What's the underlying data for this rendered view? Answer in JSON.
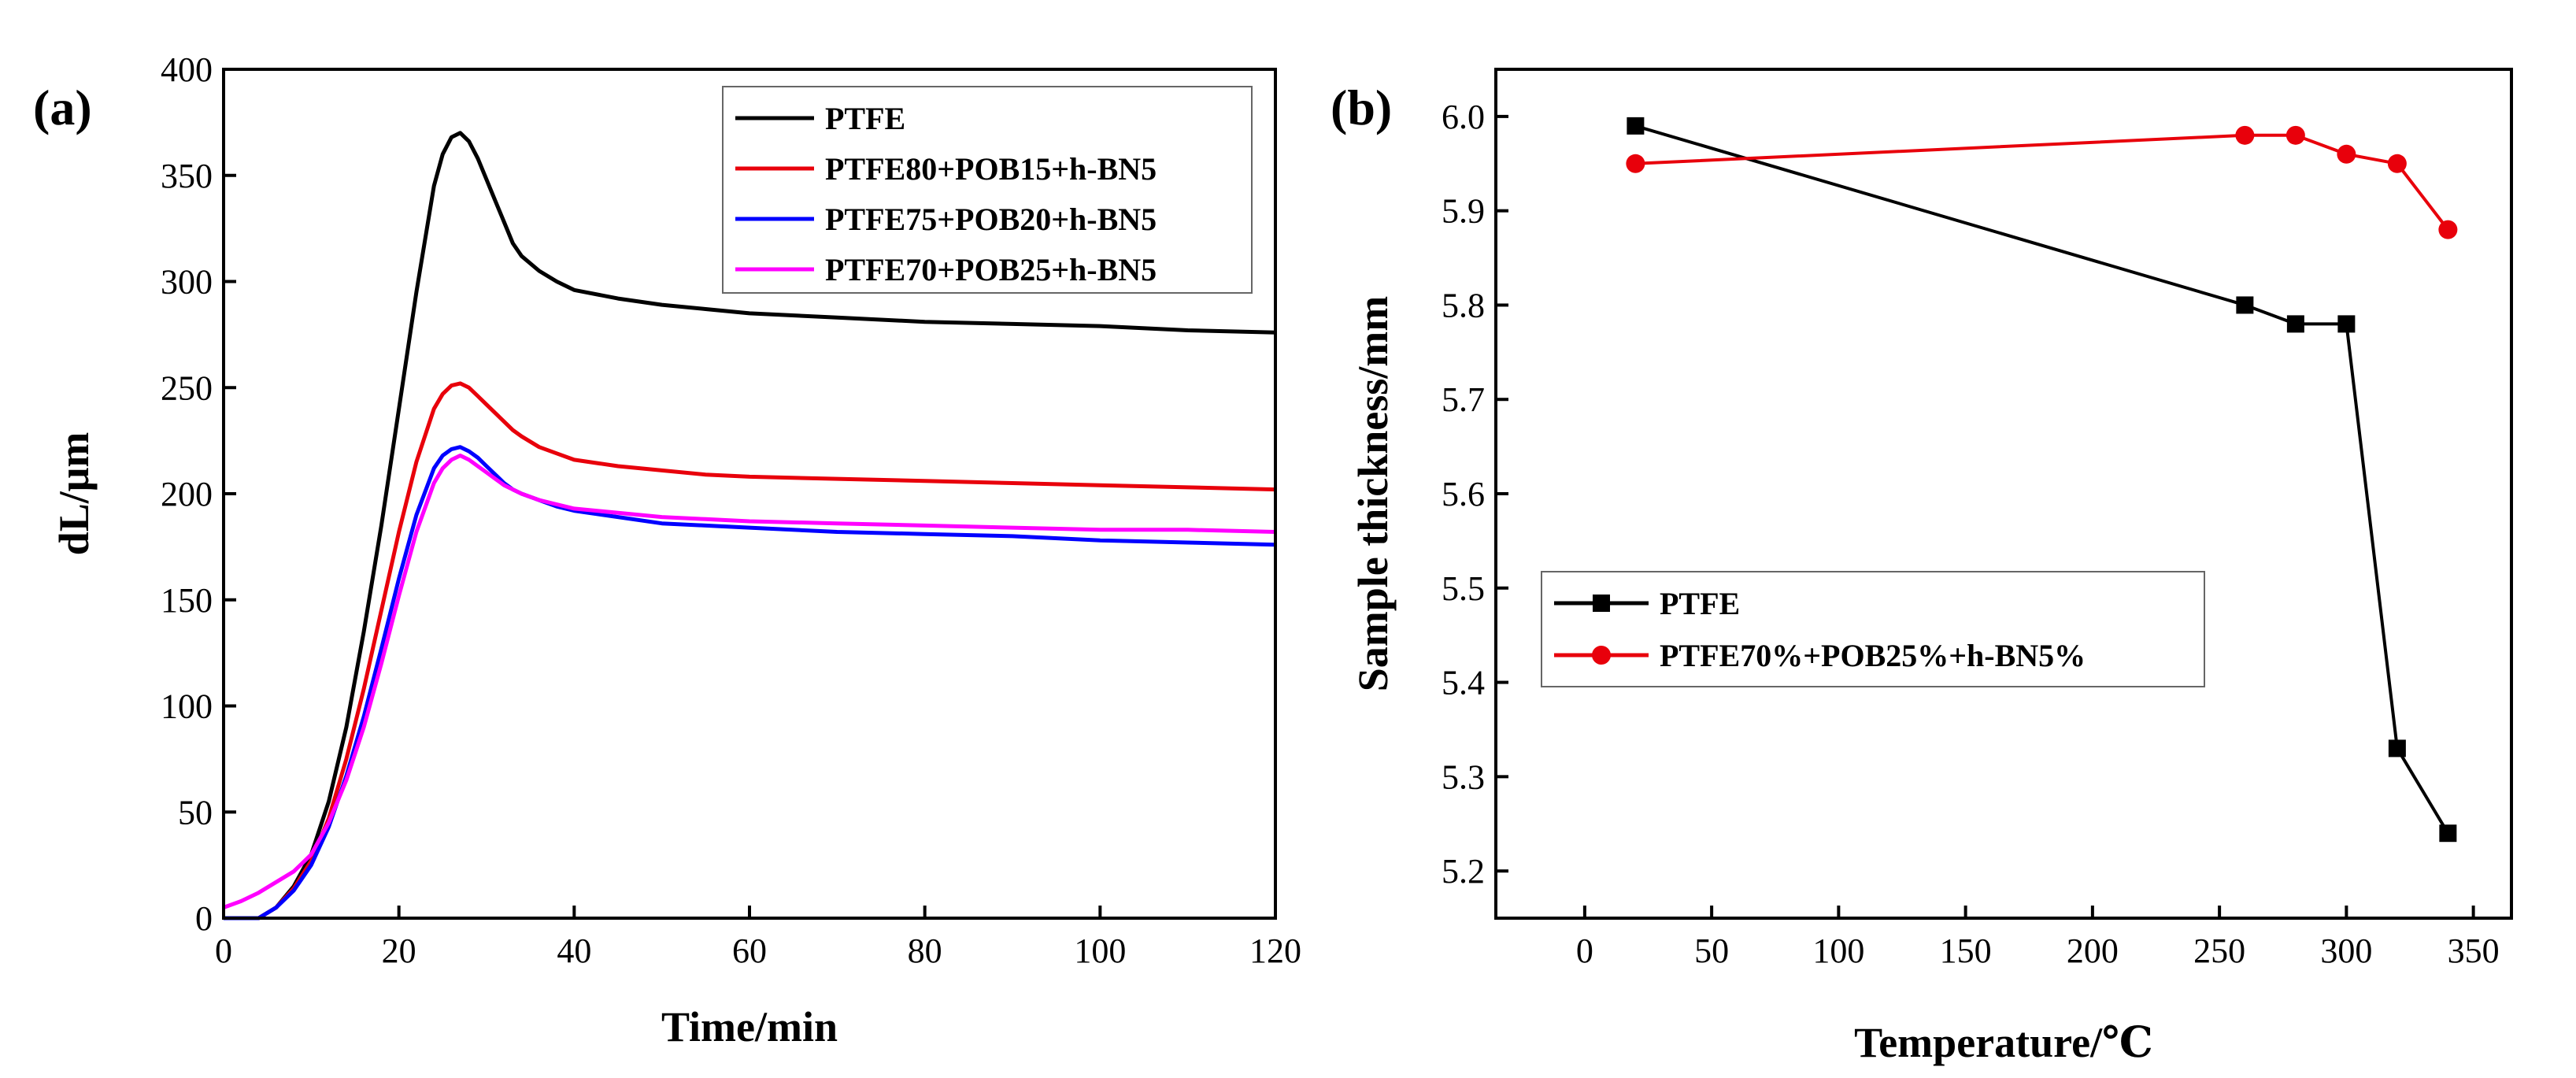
{
  "chart_data": [
    {
      "panel_label": "(a)",
      "type": "line",
      "xlabel": "Time/min",
      "ylabel": "dL/μm",
      "xlim": [
        0,
        120
      ],
      "ylim": [
        0,
        400
      ],
      "xticks": [
        0,
        20,
        40,
        60,
        80,
        100,
        120
      ],
      "yticks": [
        0,
        50,
        100,
        150,
        200,
        250,
        300,
        350,
        400
      ],
      "legend_position": "top-right",
      "series": [
        {
          "name": "PTFE",
          "color": "#000000",
          "x": [
            0,
            2,
            4,
            6,
            8,
            10,
            12,
            14,
            16,
            18,
            20,
            22,
            24,
            25,
            26,
            27,
            28,
            29,
            30,
            31,
            32,
            33,
            34,
            36,
            38,
            40,
            45,
            50,
            55,
            60,
            70,
            80,
            90,
            100,
            110,
            120
          ],
          "y": [
            0,
            0,
            0,
            5,
            15,
            30,
            55,
            90,
            135,
            185,
            240,
            295,
            345,
            360,
            368,
            370,
            366,
            358,
            348,
            338,
            328,
            318,
            312,
            305,
            300,
            296,
            292,
            289,
            287,
            285,
            283,
            281,
            280,
            279,
            277,
            276
          ]
        },
        {
          "name": "PTFE80+POB15+h-BN5",
          "color": "#e8000b",
          "x": [
            0,
            2,
            4,
            6,
            8,
            10,
            12,
            14,
            16,
            18,
            20,
            22,
            24,
            25,
            26,
            27,
            28,
            29,
            30,
            31,
            32,
            33,
            34,
            36,
            38,
            40,
            45,
            50,
            55,
            60,
            70,
            80,
            90,
            100,
            110,
            120
          ],
          "y": [
            0,
            0,
            0,
            5,
            14,
            27,
            47,
            75,
            108,
            145,
            182,
            215,
            240,
            247,
            251,
            252,
            250,
            246,
            242,
            238,
            234,
            230,
            227,
            222,
            219,
            216,
            213,
            211,
            209,
            208,
            207,
            206,
            205,
            204,
            203,
            202
          ]
        },
        {
          "name": "PTFE75+POB20+h-BN5",
          "color": "#0000ff",
          "x": [
            0,
            2,
            4,
            6,
            8,
            10,
            12,
            14,
            16,
            18,
            20,
            22,
            24,
            25,
            26,
            27,
            28,
            29,
            30,
            31,
            32,
            33,
            34,
            36,
            38,
            40,
            45,
            50,
            55,
            60,
            70,
            80,
            90,
            100,
            110,
            120
          ],
          "y": [
            0,
            0,
            0,
            5,
            13,
            25,
            43,
            67,
            95,
            127,
            160,
            190,
            212,
            218,
            221,
            222,
            220,
            217,
            213,
            209,
            205,
            202,
            200,
            197,
            194,
            192,
            189,
            186,
            185,
            184,
            182,
            181,
            180,
            178,
            177,
            176
          ]
        },
        {
          "name": "PTFE70+POB25+h-BN5",
          "color": "#ff00ff",
          "x": [
            0,
            2,
            4,
            6,
            8,
            10,
            12,
            14,
            16,
            18,
            20,
            22,
            24,
            25,
            26,
            27,
            28,
            29,
            30,
            31,
            32,
            33,
            34,
            36,
            38,
            40,
            45,
            50,
            55,
            60,
            70,
            80,
            90,
            100,
            110,
            120
          ],
          "y": [
            5,
            8,
            12,
            17,
            22,
            30,
            45,
            65,
            90,
            120,
            152,
            182,
            205,
            212,
            216,
            218,
            216,
            213,
            210,
            207,
            204,
            202,
            200,
            197,
            195,
            193,
            191,
            189,
            188,
            187,
            186,
            185,
            184,
            183,
            183,
            182
          ]
        }
      ]
    },
    {
      "panel_label": "(b)",
      "type": "line",
      "xlabel": "Temperature/℃",
      "ylabel": "Sample thickness/mm",
      "xlim": [
        -35,
        365
      ],
      "ylim": [
        5.15,
        6.05
      ],
      "xticks": [
        0,
        50,
        100,
        150,
        200,
        250,
        300,
        350
      ],
      "yticks": [
        5.2,
        5.3,
        5.4,
        5.5,
        5.6,
        5.7,
        5.8,
        5.9,
        6.0
      ],
      "ytick_labels": [
        "5.2",
        "5.3",
        "5.4",
        "5.5",
        "5.6",
        "5.7",
        "5.8",
        "5.9",
        "6.0"
      ],
      "legend_position": "center-left",
      "series": [
        {
          "name": "PTFE",
          "color": "#000000",
          "marker": "square",
          "x": [
            20,
            260,
            280,
            300,
            320,
            340
          ],
          "y": [
            5.99,
            5.8,
            5.78,
            5.78,
            5.33,
            5.24
          ]
        },
        {
          "name": "PTFE70%+POB25%+h-BN5%",
          "color": "#e8000b",
          "marker": "circle",
          "x": [
            20,
            260,
            280,
            300,
            320,
            340
          ],
          "y": [
            5.95,
            5.98,
            5.98,
            5.96,
            5.95,
            5.88
          ]
        }
      ]
    }
  ]
}
